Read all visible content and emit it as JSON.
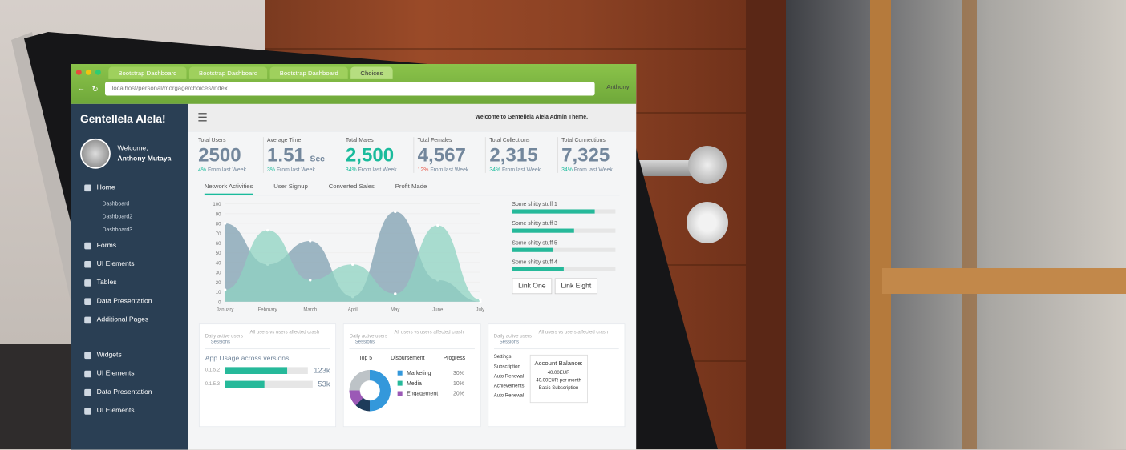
{
  "browser": {
    "tabs": [
      "Bootstrap Dashboard",
      "Bootstrap Dashboard",
      "Bootstrap Dashboard",
      "Choices"
    ],
    "url": "localhost/personal/morgage/choices/index",
    "profile": "Anthony"
  },
  "sidebar": {
    "brand": "Gentellela Alela!",
    "welcome": "Welcome,",
    "user": "Anthony Mutaya",
    "items": [
      {
        "label": "Home",
        "sub": false
      },
      {
        "label": "Dashboard",
        "sub": true
      },
      {
        "label": "Dashboard2",
        "sub": true
      },
      {
        "label": "Dashboard3",
        "sub": true
      },
      {
        "label": "Forms",
        "sub": false
      },
      {
        "label": "UI Elements",
        "sub": false
      },
      {
        "label": "Tables",
        "sub": false
      },
      {
        "label": "Data Presentation",
        "sub": false
      },
      {
        "label": "Additional Pages",
        "sub": false
      }
    ],
    "items2": [
      "Widgets",
      "UI Elements",
      "Data Presentation",
      "UI Elements"
    ]
  },
  "topbar": {
    "welcome": "Welcome to Gentellela Alela Admin Theme."
  },
  "tiles": [
    {
      "label": "Total Users",
      "value": "2500",
      "unit": "",
      "delta": "4%",
      "delta_text": "From last Week",
      "trend": "up",
      "highlight": false
    },
    {
      "label": "Average Time",
      "value": "1.51",
      "unit": "Sec",
      "delta": "3%",
      "delta_text": "From last Week",
      "trend": "up",
      "highlight": false
    },
    {
      "label": "Total Males",
      "value": "2,500",
      "unit": "",
      "delta": "34%",
      "delta_text": "From last Week",
      "trend": "up",
      "highlight": true
    },
    {
      "label": "Total Females",
      "value": "4,567",
      "unit": "",
      "delta": "12%",
      "delta_text": "From last Week",
      "trend": "down",
      "highlight": false
    },
    {
      "label": "Total Collections",
      "value": "2,315",
      "unit": "",
      "delta": "34%",
      "delta_text": "From last Week",
      "trend": "up",
      "highlight": false
    },
    {
      "label": "Total Connections",
      "value": "7,325",
      "unit": "",
      "delta": "34%",
      "delta_text": "From last Week",
      "trend": "up",
      "highlight": false
    }
  ],
  "chart_tabs": [
    "Network Activities",
    "User Signup",
    "Converted Sales",
    "Profit Made"
  ],
  "chart": {
    "type": "area",
    "categories": [
      "January",
      "February",
      "March",
      "April",
      "May",
      "June",
      "July"
    ],
    "yticks": [
      "0",
      "10",
      "20",
      "30",
      "40",
      "50",
      "60",
      "70",
      "80",
      "90",
      "100"
    ],
    "ylim": [
      0,
      100
    ],
    "series": [
      {
        "values": [
          80,
          38,
          62,
          5,
          92,
          22,
          0
        ],
        "color": "#7f9fb0"
      },
      {
        "values": [
          12,
          73,
          22,
          38,
          8,
          78,
          2
        ],
        "color": "#8fd3c1"
      }
    ]
  },
  "progress": [
    {
      "label": "Some shitty stuff 1",
      "value": 80
    },
    {
      "label": "Some shitty stuff 3",
      "value": 60
    },
    {
      "label": "Some shitty stuff 5",
      "value": 40
    },
    {
      "label": "Some shitty stuff 4",
      "value": 50
    }
  ],
  "links": [
    "Link One",
    "Link Eight"
  ],
  "panels": {
    "title": "Daily active users",
    "subtitle": "Sessions",
    "note": "All users vs users affected crash",
    "usage": {
      "title": "App Usage across versions",
      "rows": [
        {
          "version": "0.1.5.2",
          "value": "123k",
          "fill": 75
        },
        {
          "version": "0.1.5.3",
          "value": "53k",
          "fill": 45
        }
      ]
    },
    "top5": {
      "headers": [
        "Top 5",
        "Disbursement",
        "Progress"
      ],
      "legend": [
        {
          "label": "Marketing",
          "pct": "30%",
          "color": "#3498db"
        },
        {
          "label": "Media",
          "pct": "10%",
          "color": "#26b99a"
        },
        {
          "label": "Engagement",
          "pct": "20%",
          "color": "#9b59b6"
        }
      ]
    },
    "settings": [
      "Settings",
      "Subscription",
      "Auto Renewal",
      "Achievements",
      "Auto Renewal"
    ],
    "account": {
      "title": "Account Balance:",
      "line1": "40.00EUR",
      "line2": "40.00EUR per month",
      "line3": "Basic Subscription"
    }
  }
}
